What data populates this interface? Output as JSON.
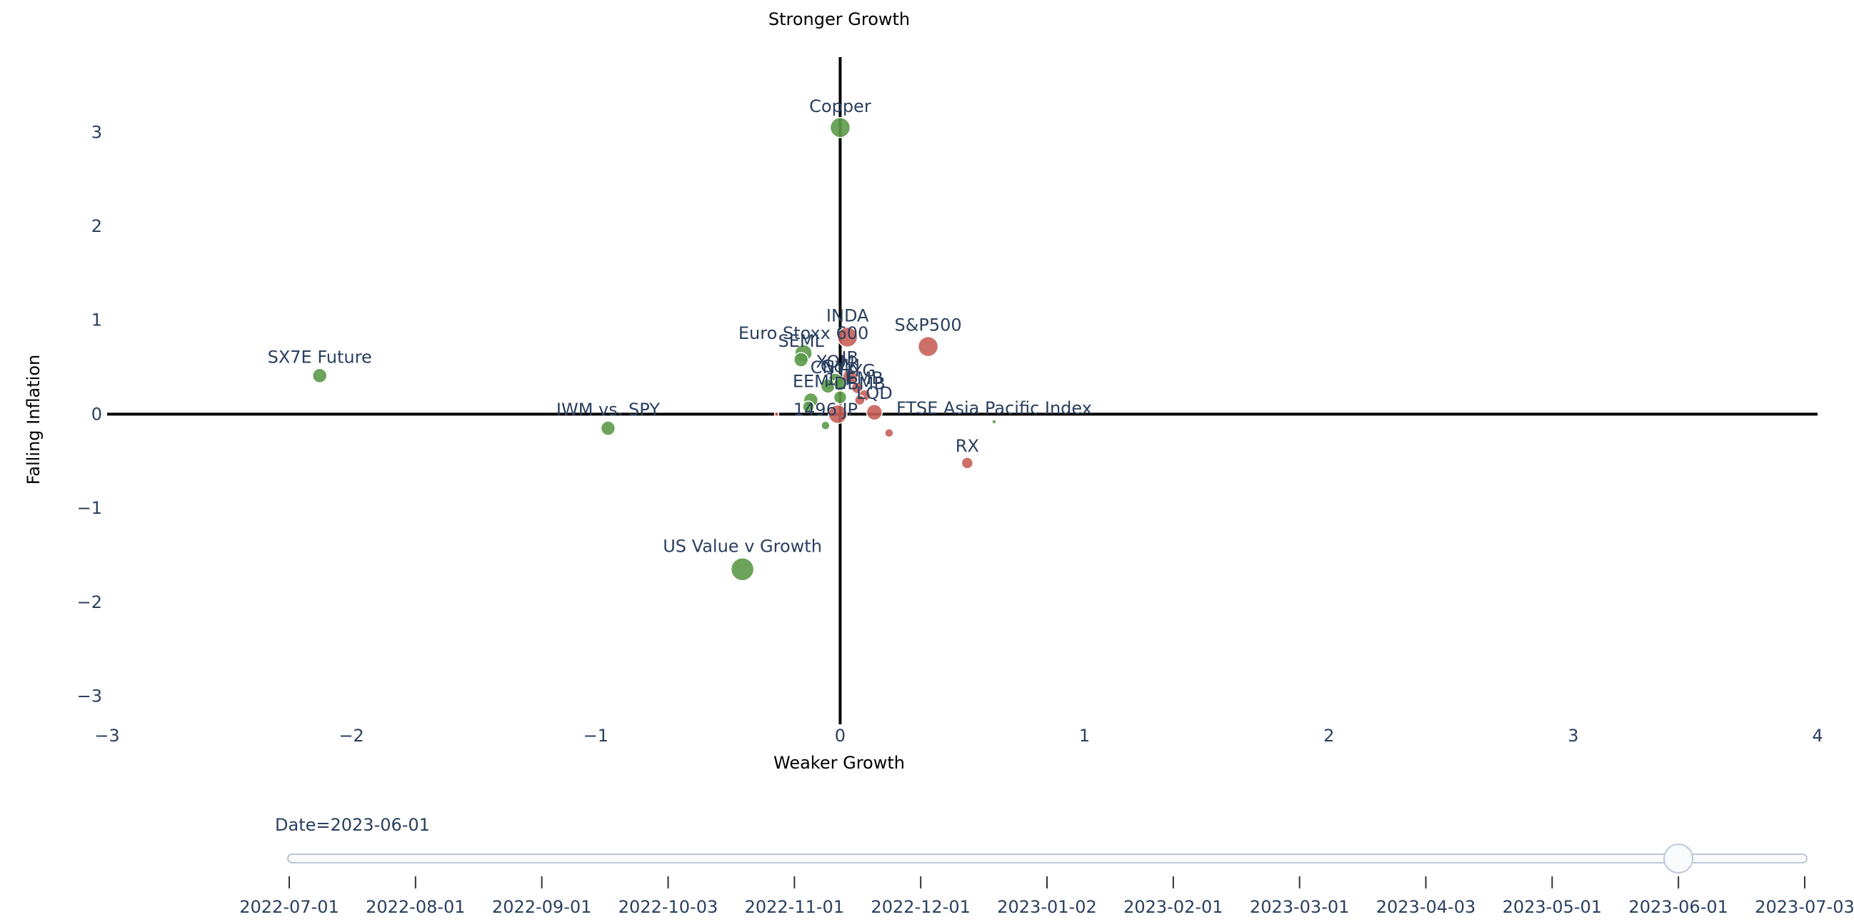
{
  "chart_data": {
    "type": "scatter",
    "title": "",
    "xlabel": "Weaker Growth",
    "x_top_label": "Stronger Growth",
    "ylabel": "Falling Inflation",
    "xlim": [
      -3,
      4
    ],
    "ylim": [
      -3.3,
      3.8
    ],
    "xticks": [
      -3,
      -2,
      -1,
      0,
      1,
      2,
      3,
      4
    ],
    "xtick_labels": [
      "−3",
      "−2",
      "−1",
      "0",
      "1",
      "2",
      "3",
      "4"
    ],
    "yticks": [
      -3,
      -2,
      -1,
      0,
      1,
      2,
      3
    ],
    "ytick_labels": [
      "−3",
      "−2",
      "−1",
      "0",
      "1",
      "2",
      "3"
    ],
    "grid": false,
    "colors": {
      "positive": "#5b9a48",
      "negative": "#c9605a",
      "axis": "#000000"
    },
    "points": [
      {
        "label": "Copper",
        "x": 0.0,
        "y": 3.05,
        "size": 14,
        "group": "positive"
      },
      {
        "label": "SX7E Future",
        "x": -2.13,
        "y": 0.41,
        "size": 10,
        "group": "positive"
      },
      {
        "label": "IWM vs. SPY",
        "x": -0.95,
        "y": -0.15,
        "size": 10,
        "group": "positive"
      },
      {
        "label": "US Value v Growth",
        "x": -0.4,
        "y": -1.65,
        "size": 16,
        "group": "positive"
      },
      {
        "label": "INDA",
        "x": 0.03,
        "y": 0.82,
        "size": 14,
        "group": "negative"
      },
      {
        "label": "S&P500",
        "x": 0.36,
        "y": 0.72,
        "size": 14,
        "group": "negative"
      },
      {
        "label": "Euro Stoxx 600",
        "x": -0.15,
        "y": 0.65,
        "size": 12,
        "group": "positive"
      },
      {
        "label": "SEML",
        "x": -0.16,
        "y": 0.58,
        "size": 10,
        "group": "positive"
      },
      {
        "label": "XOM",
        "x": -0.02,
        "y": 0.36,
        "size": 10,
        "group": "positive"
      },
      {
        "label": "JB",
        "x": 0.04,
        "y": 0.4,
        "size": 10,
        "group": "negative"
      },
      {
        "label": "CNY",
        "x": -0.05,
        "y": 0.3,
        "size": 10,
        "group": "positive"
      },
      {
        "label": "Gold",
        "x": 0.0,
        "y": 0.32,
        "size": 9,
        "group": "positive"
      },
      {
        "label": "HYG",
        "x": 0.07,
        "y": 0.28,
        "size": 8,
        "group": "negative"
      },
      {
        "label": "EMB",
        "x": 0.1,
        "y": 0.2,
        "size": 8,
        "group": "negative"
      },
      {
        "label": "DBMB",
        "x": 0.08,
        "y": 0.15,
        "size": 7,
        "group": "negative"
      },
      {
        "label": "1_F",
        "x": 0.0,
        "y": 0.18,
        "size": 9,
        "group": "positive"
      },
      {
        "label": "EEM",
        "x": -0.12,
        "y": 0.15,
        "size": 10,
        "group": "positive"
      },
      {
        "label": "1496 JP",
        "x": -0.06,
        "y": -0.12,
        "size": 6,
        "group": "positive"
      },
      {
        "label": "LQD",
        "x": 0.14,
        "y": 0.02,
        "size": 11,
        "group": "negative"
      },
      {
        "label": "FTSE Asia Pacific Index",
        "x": 0.63,
        "y": -0.08,
        "size": 3,
        "group": "positive"
      },
      {
        "label": "RX",
        "x": 0.52,
        "y": -0.52,
        "size": 8,
        "group": "negative"
      },
      {
        "label": "",
        "x": -0.26,
        "y": 0.0,
        "size": 3,
        "group": "negative"
      },
      {
        "label": "",
        "x": 0.2,
        "y": -0.2,
        "size": 6,
        "group": "negative"
      },
      {
        "label": "",
        "x": -0.01,
        "y": 0.0,
        "size": 13,
        "group": "negative"
      },
      {
        "label": "",
        "x": -0.13,
        "y": 0.08,
        "size": 8,
        "group": "positive"
      }
    ]
  },
  "slider": {
    "current_label": "Date=2023-06-01",
    "current_index": 11,
    "steps": [
      "2022-07-01",
      "2022-08-01",
      "2022-09-01",
      "2022-10-03",
      "2022-11-01",
      "2022-12-01",
      "2023-01-02",
      "2023-02-01",
      "2023-03-01",
      "2023-04-03",
      "2023-05-01",
      "2023-06-01",
      "2023-07-03"
    ]
  }
}
